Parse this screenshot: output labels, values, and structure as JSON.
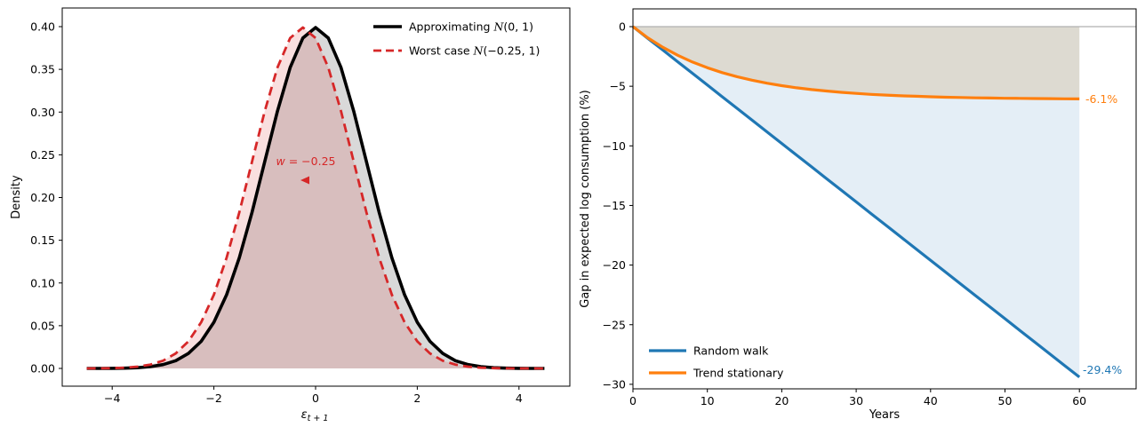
{
  "figure": {
    "background": "#ffffff"
  },
  "chart_data": [
    {
      "type": "line",
      "panel": "left",
      "xlabel": {
        "symbol": "ε",
        "subscript": "t + 1"
      },
      "ylabel": "Density",
      "xlim": [
        -4.97,
        4.97
      ],
      "ylim": [
        -0.021,
        0.422
      ],
      "grid": false,
      "xticks": {
        "values": [
          -4,
          -2,
          0,
          2,
          4
        ],
        "labels": [
          "−4",
          "−2",
          "0",
          "2",
          "4"
        ]
      },
      "yticks": {
        "values": [
          0,
          0.05,
          0.1,
          0.15,
          0.2,
          0.25,
          0.3,
          0.35,
          0.4
        ],
        "labels": [
          "0.00",
          "0.05",
          "0.10",
          "0.15",
          "0.20",
          "0.25",
          "0.30",
          "0.35",
          "0.40"
        ]
      },
      "x": [
        -4.5,
        -4.25,
        -4,
        -3.75,
        -3.5,
        -3.25,
        -3,
        -2.75,
        -2.5,
        -2.25,
        -2,
        -1.75,
        -1.5,
        -1.25,
        -1,
        -0.75,
        -0.5,
        -0.25,
        0,
        0.25,
        0.5,
        0.75,
        1,
        1.25,
        1.5,
        1.75,
        2,
        2.25,
        2.5,
        2.75,
        3,
        3.25,
        3.5,
        3.75,
        4,
        4.25,
        4.5
      ],
      "series": [
        {
          "name": "approximating-normal",
          "color": "#000000",
          "width": 3.6,
          "dash": "",
          "fill": "#808080",
          "fill_opacity": 0.3,
          "y": [
            2e-05,
            5e-05,
            0.00013,
            0.00035,
            0.00087,
            0.00203,
            0.00443,
            0.00909,
            0.01753,
            0.03174,
            0.05399,
            0.08628,
            0.12952,
            0.18265,
            0.24197,
            0.30114,
            0.35207,
            0.38667,
            0.39894,
            0.38667,
            0.35207,
            0.30114,
            0.24197,
            0.18265,
            0.12952,
            0.08628,
            0.05399,
            0.03174,
            0.01753,
            0.00909,
            0.00443,
            0.00203,
            0.00087,
            0.00035,
            0.00013,
            5e-05,
            2e-05
          ]
        },
        {
          "name": "worst-case-normal",
          "color": "#d62728",
          "width": 2.8,
          "dash": "10 6",
          "fill": "#d62728",
          "fill_opacity": 0.15,
          "y": [
            5e-05,
            0.00013,
            0.00035,
            0.00087,
            0.00203,
            0.00443,
            0.00909,
            0.01753,
            0.03174,
            0.05399,
            0.08628,
            0.12952,
            0.18265,
            0.24197,
            0.30114,
            0.35207,
            0.38667,
            0.39894,
            0.38667,
            0.35207,
            0.30114,
            0.24197,
            0.18265,
            0.12952,
            0.08628,
            0.05399,
            0.03174,
            0.01753,
            0.00909,
            0.00443,
            0.00203,
            0.00087,
            0.00035,
            0.00013,
            5e-05,
            2e-05,
            1e-05
          ]
        }
      ],
      "legend": {
        "position": "upper right",
        "entries": [
          {
            "pre": "Approximating ",
            "symbol": "N",
            "args": "(0, 1)",
            "color": "#000000",
            "dash": ""
          },
          {
            "pre": "Worst case ",
            "symbol": "N",
            "args": "(−0.25, 1)",
            "color": "#d62728",
            "dash": "9 5"
          }
        ]
      },
      "annotation": {
        "var": "w",
        "rest": " = −0.25",
        "color": "#d62728",
        "arrow": "left-arrowhead"
      }
    },
    {
      "type": "line",
      "panel": "right",
      "xlabel": "Years",
      "ylabel": "Gap in expected log consumption (%)",
      "xlim": [
        0,
        67.6
      ],
      "ylim": [
        -30.4,
        1.5
      ],
      "grid": false,
      "zero_line": {
        "value": 0,
        "color": "#b0b0b0"
      },
      "xticks": {
        "values": [
          0,
          10,
          20,
          30,
          40,
          50,
          60
        ],
        "labels": [
          "0",
          "10",
          "20",
          "30",
          "40",
          "50",
          "60"
        ]
      },
      "yticks": {
        "values": [
          0,
          -5,
          -10,
          -15,
          -20,
          -25,
          -30
        ],
        "labels": [
          "0",
          "−5",
          "−10",
          "−15",
          "−20",
          "−25",
          "−30"
        ]
      },
      "x": [
        0,
        2,
        4,
        6,
        8,
        10,
        12,
        14,
        16,
        18,
        20,
        22,
        24,
        26,
        28,
        30,
        32,
        34,
        36,
        38,
        40,
        42,
        44,
        46,
        48,
        50,
        52,
        54,
        56,
        58,
        60
      ],
      "series": [
        {
          "name": "random-walk",
          "label": "Random walk",
          "color": "#1f77b4",
          "width": 3.2,
          "dash": "",
          "fill": "#1f77b4",
          "fill_opacity": 0.12,
          "y": [
            0,
            -0.98,
            -1.96,
            -2.94,
            -3.92,
            -4.9,
            -5.88,
            -6.86,
            -7.84,
            -8.82,
            -9.8,
            -10.78,
            -11.76,
            -12.74,
            -13.72,
            -14.7,
            -15.68,
            -16.66,
            -17.64,
            -18.62,
            -19.6,
            -20.58,
            -21.56,
            -22.54,
            -23.52,
            -24.5,
            -25.48,
            -26.46,
            -27.44,
            -28.42,
            -29.4
          ]
        },
        {
          "name": "trend-stationary",
          "label": "Trend stationary",
          "color": "#ff7f0e",
          "width": 3.2,
          "dash": "",
          "fill": "#d2b48c",
          "fill_opacity": 0.35,
          "y": [
            0,
            -0.94,
            -1.73,
            -2.4,
            -2.97,
            -3.45,
            -3.86,
            -4.2,
            -4.49,
            -4.74,
            -4.95,
            -5.13,
            -5.28,
            -5.4,
            -5.51,
            -5.6,
            -5.68,
            -5.74,
            -5.8,
            -5.84,
            -5.88,
            -5.92,
            -5.94,
            -5.97,
            -5.99,
            -6.01,
            -6.02,
            -6.03,
            -6.04,
            -6.05,
            -6.06
          ]
        }
      ],
      "legend": {
        "position": "lower left",
        "entries": [
          {
            "label": "Random walk",
            "color": "#1f77b4"
          },
          {
            "label": "Trend stationary",
            "color": "#ff7f0e"
          }
        ]
      },
      "end_labels": {
        "trend_stationary": "-6.1%",
        "random_walk": "-29.4%"
      }
    }
  ]
}
